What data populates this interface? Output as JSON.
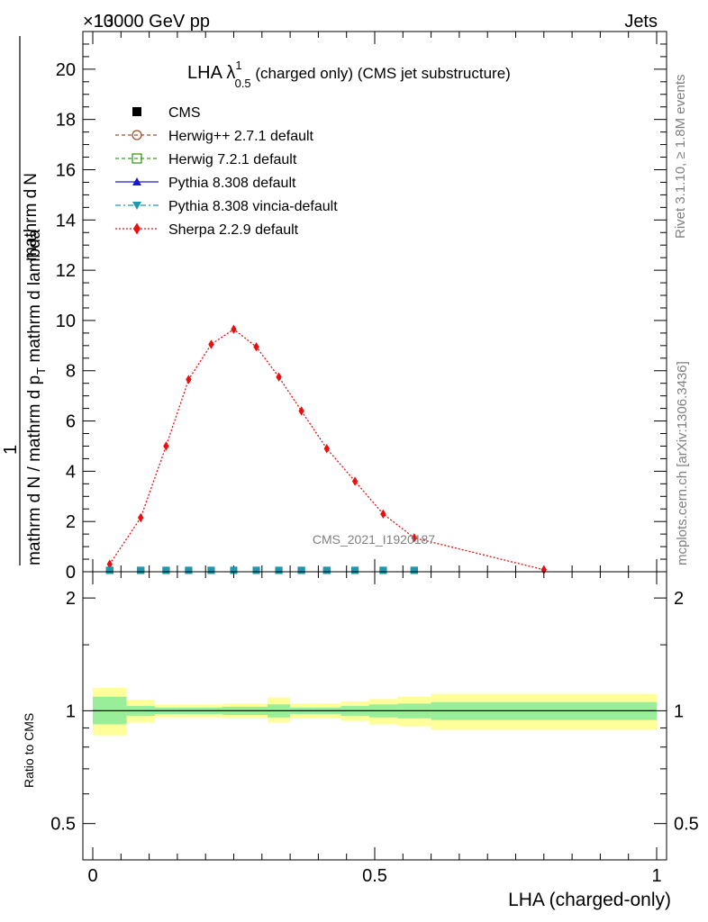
{
  "header": {
    "collision": "13000 GeV pp",
    "exponent": "×10",
    "process": "Jets"
  },
  "side": {
    "rivet": "Rivet 3.1.10, ≥ 1.8M events",
    "mcplots": "mcplots.cern.ch [arXiv:1306.3436]"
  },
  "title": {
    "main": "LHA λ",
    "sup": "1",
    "sub": "0.5",
    "rest": " (charged only) (CMS jet substructure)"
  },
  "analysis_label": "CMS_2021_I1920187",
  "legend": [
    {
      "label": "CMS",
      "color": "#000000",
      "marker": "square"
    },
    {
      "label": "Herwig++ 2.7.1 default",
      "color": "#a0522d",
      "marker": "circle-open"
    },
    {
      "label": "Herwig 7.2.1 default",
      "color": "#3a9a1a",
      "marker": "square-open"
    },
    {
      "label": "Pythia 8.308 default",
      "color": "#1a1acc",
      "marker": "triangle"
    },
    {
      "label": "Pythia 8.308 vincia-default",
      "color": "#1a9ab0",
      "marker": "triangle-down"
    },
    {
      "label": "Sherpa 2.2.9 default",
      "color": "#e81010",
      "marker": "diamond"
    }
  ],
  "chart_data": [
    {
      "type": "line",
      "ylabel_num": "1",
      "ylabel_den": "mathrm d N / mathrm d p",
      "ylabel_main": "mathrm d p",
      "ylabel_sub": "T",
      "ylabel_lambda": "mathrm d lambda",
      "ylabel_dN": "mathrm d",
      "ylabel_N": "N",
      "ylabel_mid": "mathrm d p",
      "ylabel_T": "T",
      "ylabel_end": " mathrm d lambda",
      "ylabel_line1": "mathrm d",
      "ylim": [
        0,
        21.5
      ],
      "y_ticks": [
        "0",
        "2",
        "4",
        "6",
        "8",
        "10",
        "12",
        "14",
        "16",
        "18",
        "20"
      ],
      "xlim": [
        0,
        1
      ],
      "series": [
        {
          "name": "Sherpa 2.2.9 default",
          "x": [
            0.03,
            0.085,
            0.13,
            0.17,
            0.21,
            0.25,
            0.29,
            0.33,
            0.37,
            0.415,
            0.465,
            0.515,
            0.57,
            0.8
          ],
          "y": [
            0.3,
            2.15,
            5.0,
            7.65,
            9.05,
            9.65,
            8.95,
            7.75,
            6.4,
            4.9,
            3.6,
            2.3,
            1.35,
            0.08
          ]
        },
        {
          "name": "CMS",
          "x": [
            0.03,
            0.085,
            0.13,
            0.17,
            0.21,
            0.25,
            0.29,
            0.33,
            0.37,
            0.415,
            0.465,
            0.515,
            0.57
          ],
          "y": [
            0.02,
            0.02,
            0.02,
            0.02,
            0.02,
            0.02,
            0.02,
            0.02,
            0.02,
            0.02,
            0.02,
            0.02,
            0.02
          ]
        }
      ]
    },
    {
      "type": "area",
      "ylabel": "Ratio to CMS",
      "ylim": [
        0.4,
        2.35
      ],
      "log_y": true,
      "y_ticks": [
        "0.5",
        "1",
        "2"
      ],
      "xlabel": "LHA (charged-only)",
      "x_ticks": [
        "0",
        "0.5",
        "1"
      ],
      "bins": [
        0,
        0.06,
        0.11,
        0.15,
        0.19,
        0.23,
        0.27,
        0.31,
        0.35,
        0.39,
        0.44,
        0.49,
        0.54,
        0.6,
        1.0
      ],
      "stat_band": [
        [
          0.92,
          1.09
        ],
        [
          0.97,
          1.03
        ],
        [
          0.98,
          1.02
        ],
        [
          0.98,
          1.02
        ],
        [
          0.98,
          1.02
        ],
        [
          0.975,
          1.025
        ],
        [
          0.975,
          1.025
        ],
        [
          0.96,
          1.04
        ],
        [
          0.98,
          1.02
        ],
        [
          0.98,
          1.02
        ],
        [
          0.97,
          1.03
        ],
        [
          0.96,
          1.04
        ],
        [
          0.955,
          1.045
        ],
        [
          0.945,
          1.055
        ]
      ],
      "total_band": [
        [
          0.86,
          1.15
        ],
        [
          0.93,
          1.07
        ],
        [
          0.96,
          1.04
        ],
        [
          0.96,
          1.04
        ],
        [
          0.96,
          1.04
        ],
        [
          0.955,
          1.045
        ],
        [
          0.955,
          1.045
        ],
        [
          0.93,
          1.085
        ],
        [
          0.955,
          1.045
        ],
        [
          0.955,
          1.045
        ],
        [
          0.94,
          1.06
        ],
        [
          0.92,
          1.075
        ],
        [
          0.91,
          1.09
        ],
        [
          0.89,
          1.11
        ]
      ]
    }
  ]
}
